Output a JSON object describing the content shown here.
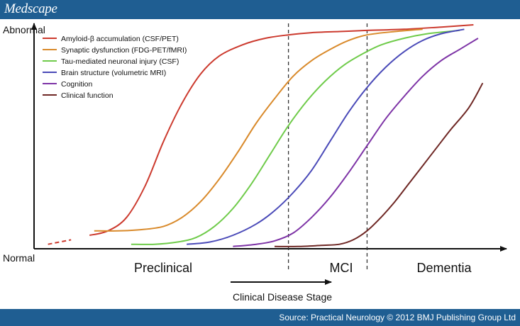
{
  "header": {
    "logo": "Medscape"
  },
  "footer": {
    "source": "Source: Practical Neurology © 2012 BMJ Publishing Group Ltd"
  },
  "chart_data": {
    "type": "line",
    "title": "",
    "xlabel": "Clinical Disease Stage",
    "y_top_label": "Abnormal",
    "y_bottom_label": "Normal",
    "stages": [
      "Preclinical",
      "MCI",
      "Dementia"
    ],
    "xlim": [
      0,
      100
    ],
    "ylim": [
      0,
      100
    ],
    "stage_boundaries": [
      55,
      72
    ],
    "grid": false,
    "legend_position": "top-left",
    "series": [
      {
        "name": "Amyloid-β accumulation (CSF/PET)",
        "color": "#cc3a2e",
        "dashed_until": 10,
        "x": [
          3,
          8,
          12,
          16,
          20,
          24,
          28,
          32,
          36,
          40,
          45,
          50,
          55,
          60,
          66,
          72,
          80,
          88,
          95
        ],
        "y": [
          2,
          4,
          6,
          8,
          14,
          28,
          48,
          65,
          78,
          86,
          91,
          94,
          95.5,
          96.5,
          97,
          97.5,
          98,
          99,
          100
        ]
      },
      {
        "name": "Synaptic dysfunction (FDG-PET/fMRI)",
        "color": "#d98a2b",
        "x": [
          13,
          18,
          23,
          28,
          32,
          36,
          40,
          44,
          48,
          52,
          56,
          60,
          64,
          68,
          72,
          78,
          84
        ],
        "y": [
          8,
          8,
          8.5,
          10,
          14,
          21,
          31,
          43,
          56,
          67,
          77,
          84,
          89,
          93,
          95.5,
          97,
          98
        ]
      },
      {
        "name": "Tau-mediated neuronal injury (CSF)",
        "color": "#6fcb4a",
        "x": [
          21,
          26,
          31,
          35,
          39,
          43,
          47,
          51,
          55,
          59,
          63,
          67,
          71,
          75,
          80,
          85,
          92
        ],
        "y": [
          2,
          2,
          3,
          5,
          10,
          18,
          29,
          42,
          55,
          66,
          75,
          82,
          87,
          91,
          94,
          96,
          97.5
        ]
      },
      {
        "name": "Brain structure (volumetric MRI)",
        "color": "#4a4ab8",
        "x": [
          33,
          38,
          43,
          48,
          52,
          56,
          60,
          64,
          68,
          72,
          76,
          80,
          84,
          88,
          93
        ],
        "y": [
          2,
          3,
          6,
          11,
          17,
          25,
          35,
          48,
          61,
          72,
          81,
          88,
          93,
          96,
          98
        ]
      },
      {
        "name": "Cognition",
        "color": "#7d33a6",
        "x": [
          43,
          48,
          52,
          56,
          60,
          64,
          68,
          72,
          76,
          80,
          84,
          88,
          92,
          96
        ],
        "y": [
          1,
          2,
          3.5,
          7,
          14,
          23,
          34,
          46,
          58,
          68,
          77,
          84,
          89,
          94
        ]
      },
      {
        "name": "Clinical function",
        "color": "#6e2724",
        "x": [
          52,
          57,
          62,
          66,
          69,
          72,
          75,
          78,
          81,
          84,
          87,
          90,
          94,
          97
        ],
        "y": [
          1,
          1,
          1.5,
          2,
          4,
          8,
          14,
          21,
          29,
          37,
          45,
          53,
          63,
          74
        ]
      }
    ]
  }
}
